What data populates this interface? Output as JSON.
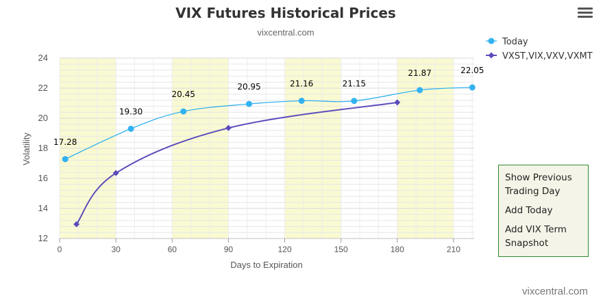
{
  "header": {
    "title": "VIX Futures Historical Prices",
    "subtitle": "vixcentral.com"
  },
  "menu_icon": "hamburger-menu-icon",
  "side_menu": {
    "items": [
      "Show Previous Trading Day",
      "Add Today",
      "Add VIX Term Snapshot"
    ]
  },
  "credit": "vixcentral.com",
  "colors": {
    "today": "#33b2f0",
    "term": "#5b4cbc",
    "band": "#fafad2",
    "menu_border": "#2e8b2e"
  },
  "chart_data": {
    "type": "line",
    "title": "VIX Futures Historical Prices",
    "subtitle": "vixcentral.com",
    "xlabel": "Days to Expiration",
    "ylabel": "Volatility",
    "xlim": [
      0,
      221
    ],
    "ylim": [
      12,
      24
    ],
    "xticks": [
      0,
      30,
      60,
      90,
      120,
      150,
      180,
      210
    ],
    "yticks": [
      12,
      14,
      16,
      18,
      20,
      22,
      24
    ],
    "bands": [
      [
        0,
        30
      ],
      [
        60,
        90
      ],
      [
        120,
        150
      ],
      [
        180,
        210
      ]
    ],
    "grid": true,
    "legend_position": "top-right",
    "series": [
      {
        "name": "Today",
        "x": [
          3,
          38,
          66,
          101,
          129,
          157,
          192,
          220
        ],
        "y": [
          17.28,
          19.3,
          20.45,
          20.95,
          21.16,
          21.15,
          21.87,
          22.05
        ],
        "labels": [
          "17.28",
          "19.30",
          "20.45",
          "20.95",
          "21.16",
          "21.15",
          "21.87",
          "22.05"
        ]
      },
      {
        "name": "VXST,VIX,VXV,VXMT",
        "x": [
          9,
          30,
          90,
          180
        ],
        "y": [
          12.95,
          16.35,
          19.35,
          21.05
        ]
      }
    ]
  }
}
